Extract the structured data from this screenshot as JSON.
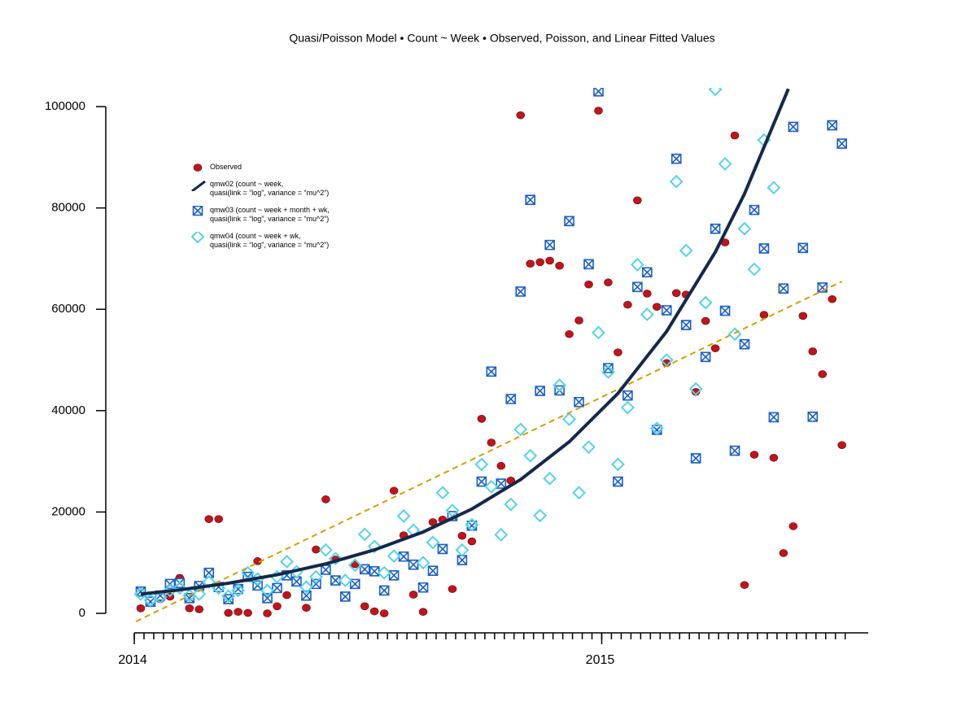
{
  "chart_data": {
    "type": "scatter",
    "title": "Quasi/Poisson Model • Count ~ Week • Observed, Poisson, and Linear Fitted Values",
    "x": [
      1,
      2,
      3,
      4,
      5,
      6,
      7,
      8,
      9,
      10,
      11,
      12,
      13,
      14,
      15,
      16,
      17,
      18,
      19,
      20,
      21,
      22,
      23,
      24,
      25,
      26,
      27,
      28,
      29,
      30,
      31,
      32,
      33,
      34,
      35,
      36,
      37,
      38,
      39,
      40,
      41,
      42,
      43,
      44,
      45,
      46,
      47,
      48,
      49,
      50,
      51,
      52,
      53,
      54,
      55,
      56,
      57,
      58,
      59,
      60,
      61,
      62,
      63,
      64,
      65,
      66,
      67,
      68,
      69,
      70,
      71,
      72,
      73
    ],
    "xlim": [
      0,
      75.7
    ],
    "xticks": [
      {
        "value": 0,
        "label": "2014"
      },
      {
        "value": 48,
        "label": "2015"
      }
    ],
    "xminorticks": [
      0,
      1,
      2,
      3,
      4,
      5,
      6,
      7,
      8,
      9,
      10,
      11,
      12,
      13,
      14,
      15,
      16,
      17,
      18,
      19,
      20,
      21,
      22,
      23,
      24,
      25,
      26,
      27,
      28,
      29,
      30,
      31,
      32,
      33,
      34,
      35,
      36,
      37,
      38,
      39,
      40,
      41,
      42,
      43,
      44,
      45,
      46,
      47,
      48,
      49,
      50,
      51,
      52,
      53,
      54,
      55,
      56,
      57,
      58,
      59,
      60,
      61,
      62,
      63,
      64,
      65,
      66,
      67,
      68,
      69,
      70,
      71,
      72,
      73
    ],
    "ylim": [
      -3850,
      103700
    ],
    "yticks": [
      0,
      20000,
      40000,
      60000,
      80000,
      100000
    ],
    "series": [
      {
        "name": "Observed",
        "marker": "circle",
        "color": "#c0141c",
        "values": [
          1000,
          2000,
          2800,
          3300,
          7000,
          1000,
          800,
          18600,
          18600,
          100,
          300,
          100,
          10300,
          0,
          1400,
          3600,
          6500,
          1100,
          12600,
          22500,
          10600,
          3500,
          9700,
          1400,
          400,
          0,
          24200,
          15400,
          3700,
          300,
          18000,
          18500,
          4800,
          15300,
          14200,
          38400,
          33700,
          29100,
          26200,
          98300,
          69000,
          69300,
          69600,
          68600,
          55100,
          57800,
          64900,
          99200,
          65300,
          51500,
          60900,
          81500,
          63100,
          60500,
          49400,
          63200,
          62900,
          43700,
          57700,
          52300,
          73200,
          94300,
          5600,
          31300,
          58900,
          30700,
          11900,
          17200,
          58700,
          51700,
          47200,
          62000,
          33200
        ]
      },
      {
        "name": "qmw02 (count ~ week,\nquasi(link = “log”, variance = “mu^2”)",
        "marker": "line",
        "color": "#14294a",
        "x": [
          1,
          5,
          10,
          15,
          20,
          25,
          30,
          35,
          40,
          45,
          50,
          55,
          60,
          63,
          67.5
        ],
        "values": [
          3800,
          4640,
          5940,
          7620,
          9770,
          12530,
          16060,
          20590,
          26400,
          33850,
          43400,
          55630,
          71300,
          82800,
          103500
        ]
      },
      {
        "name": "qmw03 (count ~ week + month + wk,\nquasi(link = “log”, variance = “mu^2”)",
        "marker": "square-x",
        "color": "#1a5ec8",
        "values": [
          4300,
          2300,
          3500,
          5800,
          6000,
          3000,
          5400,
          8000,
          5200,
          2800,
          4800,
          7200,
          5500,
          3000,
          5000,
          7500,
          6300,
          3500,
          5800,
          8600,
          6500,
          3300,
          5800,
          8700,
          8300,
          4500,
          7500,
          11200,
          9600,
          5100,
          8400,
          12700,
          19200,
          10500,
          17300,
          26000,
          47700,
          25600,
          42300,
          63500,
          81600,
          43900,
          72700,
          44000,
          77400,
          41700,
          68900,
          103000,
          48400,
          26000,
          43000,
          64400,
          67300,
          36200,
          59800,
          89700,
          56900,
          30600,
          50600,
          75900,
          59700,
          32100,
          53100,
          79600,
          72000,
          38700,
          64100,
          96000,
          72100,
          38800,
          64300,
          96300,
          92700
        ]
      },
      {
        "name": "qmw04 (count ~ week + wk,\nquasi(link = “log”, variance = “mu^2”)",
        "marker": "diamond",
        "color": "#55d3ea",
        "values": [
          3800,
          2600,
          3200,
          4500,
          5000,
          3500,
          3800,
          6200,
          5000,
          3400,
          4500,
          8000,
          6800,
          4500,
          7200,
          10200,
          8200,
          5200,
          7200,
          12500,
          10800,
          6500,
          9500,
          15600,
          13200,
          8000,
          11300,
          19200,
          16400,
          10000,
          14000,
          23800,
          20300,
          12500,
          17500,
          29400,
          25000,
          15500,
          21500,
          36300,
          31100,
          19300,
          26600,
          45000,
          38300,
          23800,
          32800,
          55400,
          47600,
          29400,
          40600,
          68800,
          59000,
          36500,
          50000,
          85200,
          71600,
          44300,
          61300,
          103400,
          88700,
          55100,
          75900,
          67900,
          93400,
          84000,
          null,
          null,
          null,
          null,
          null,
          null,
          null
        ]
      },
      {
        "marker": "dashed-line",
        "color": "#d4a000",
        "x": [
          0.5,
          73
        ],
        "values": [
          -1600,
          65500
        ]
      }
    ]
  }
}
